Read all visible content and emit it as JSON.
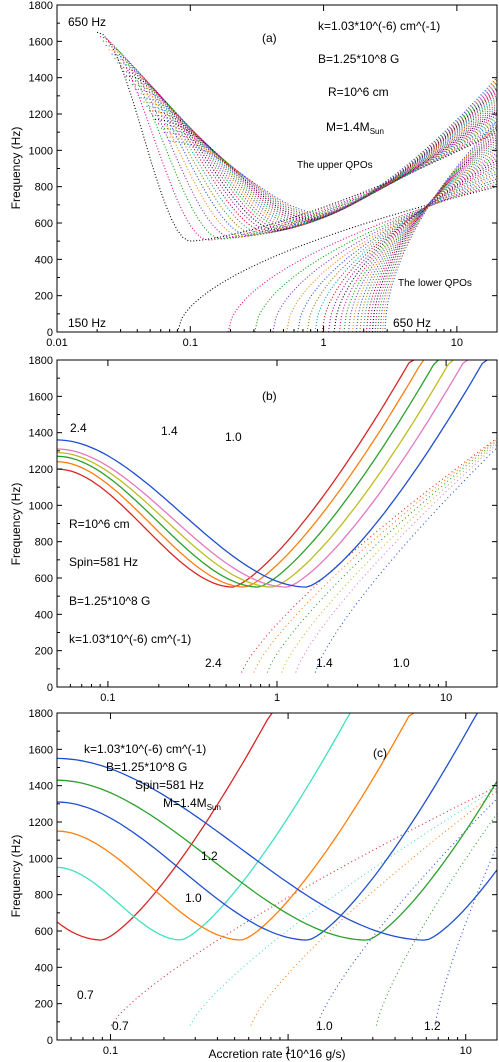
{
  "figure": {
    "xlabel": "Accretion rate (10^16 g/s)",
    "ylabel": "Frequency (Hz)"
  },
  "chart_data": [
    {
      "type": "line",
      "panel": "(a)",
      "xscale": "log",
      "xlim": [
        0.01,
        20
      ],
      "ylim": [
        0,
        1800
      ],
      "xticks": [
        "0.01",
        "0.1",
        "1",
        "10"
      ],
      "yticks": [
        "0",
        "200",
        "400",
        "600",
        "800",
        "1000",
        "1200",
        "1400",
        "1600",
        "1800"
      ],
      "annotations": {
        "params1": "k=1.03*10^(-6) cm^(-1)",
        "params2": "B=1.25*10^8 G",
        "params3": "R=10^6 cm",
        "params4_main": "M=1.4M",
        "params4_sub": "Sun",
        "upper": "The upper QPOs",
        "lower": "The lower QPOs",
        "hz650_top": "650 Hz",
        "hz150": "150 Hz",
        "hz650_bottom": "650 Hz"
      },
      "family": {
        "spin_range_hz": [
          150,
          650
        ],
        "num_curves": 26,
        "upper_qpo_at_20": [
          1100,
          1400
        ],
        "lower_qpo_at_20": [
          800,
          1160
        ]
      },
      "colors": [
        "#000000",
        "#e4007f",
        "#00a000",
        "#7b2fbe",
        "#ff7f00",
        "#2050d0",
        "#808000",
        "#00a0a0",
        "#c00000",
        "#a000c0"
      ]
    },
    {
      "type": "line",
      "panel": "(b)",
      "xscale": "log",
      "xlim": [
        0.05,
        20
      ],
      "ylim": [
        0,
        1800
      ],
      "xticks": [
        "0.1",
        "1",
        "10"
      ],
      "yticks": [
        "0",
        "200",
        "400",
        "600",
        "800",
        "1000",
        "1200",
        "1400",
        "1600",
        "1800"
      ],
      "annotations": {
        "r": "R=10^6 cm",
        "spin": "Spin=581 Hz",
        "b": "B=1.25*10^8 G",
        "k": "k=1.03*10^(-6) cm^(-1)",
        "l24": "2.4",
        "l14": "1.4",
        "l10": "1.0",
        "b24": "2.4",
        "b14": "1.4",
        "b10": "1.0"
      },
      "series": [
        {
          "name": "2.4",
          "color": "#d62728",
          "mdot_min": 0.55,
          "start_hz": 1200
        },
        {
          "color": "#ff7f0e",
          "mdot_min": 0.65,
          "start_hz": 1240
        },
        {
          "color": "#2ca02c",
          "mdot_min": 0.78,
          "start_hz": 1270
        },
        {
          "name": "1.4",
          "color": "#bcbd22",
          "mdot_min": 0.95,
          "start_hz": 1290
        },
        {
          "color": "#e377c2",
          "mdot_min": 1.15,
          "start_hz": 1310
        },
        {
          "name": "1.0",
          "color": "#1f4fd0",
          "mdot_min": 1.5,
          "start_hz": 1360
        }
      ]
    },
    {
      "type": "line",
      "panel": "(c)",
      "xscale": "log",
      "xlim": [
        0.05,
        15
      ],
      "ylim": [
        0,
        1800
      ],
      "xticks": [
        "0.1",
        "1",
        "10"
      ],
      "yticks": [
        "0",
        "200",
        "400",
        "600",
        "800",
        "1000",
        "1200",
        "1400",
        "1600",
        "1800"
      ],
      "annotations": {
        "k": "k=1.03*10^(-6) cm^(-1)",
        "b": "B=1.25*10^8 G",
        "spin": "Spin=581 Hz",
        "m_main": "M=1.4M",
        "m_sub": "Sun",
        "l12": "1.2",
        "l10": "1.0",
        "l07": "0.7",
        "b07": "0.7",
        "b10": "1.0",
        "b12": "1.2"
      },
      "series": [
        {
          "name": "0.7",
          "color": "#d62728",
          "mdot_min": 0.09,
          "start_hz": 650
        },
        {
          "color": "#40e0c0",
          "mdot_min": 0.25,
          "start_hz": 950
        },
        {
          "name": "1.0",
          "color": "#ff7f0e",
          "mdot_min": 0.55,
          "start_hz": 1150
        },
        {
          "color": "#2050d0",
          "mdot_min": 1.3,
          "start_hz": 1310
        },
        {
          "color": "#2ca02c",
          "mdot_min": 2.8,
          "start_hz": 1430
        },
        {
          "name": "1.2",
          "color": "#1f4fd0",
          "mdot_min": 6.0,
          "start_hz": 1550
        }
      ]
    }
  ]
}
